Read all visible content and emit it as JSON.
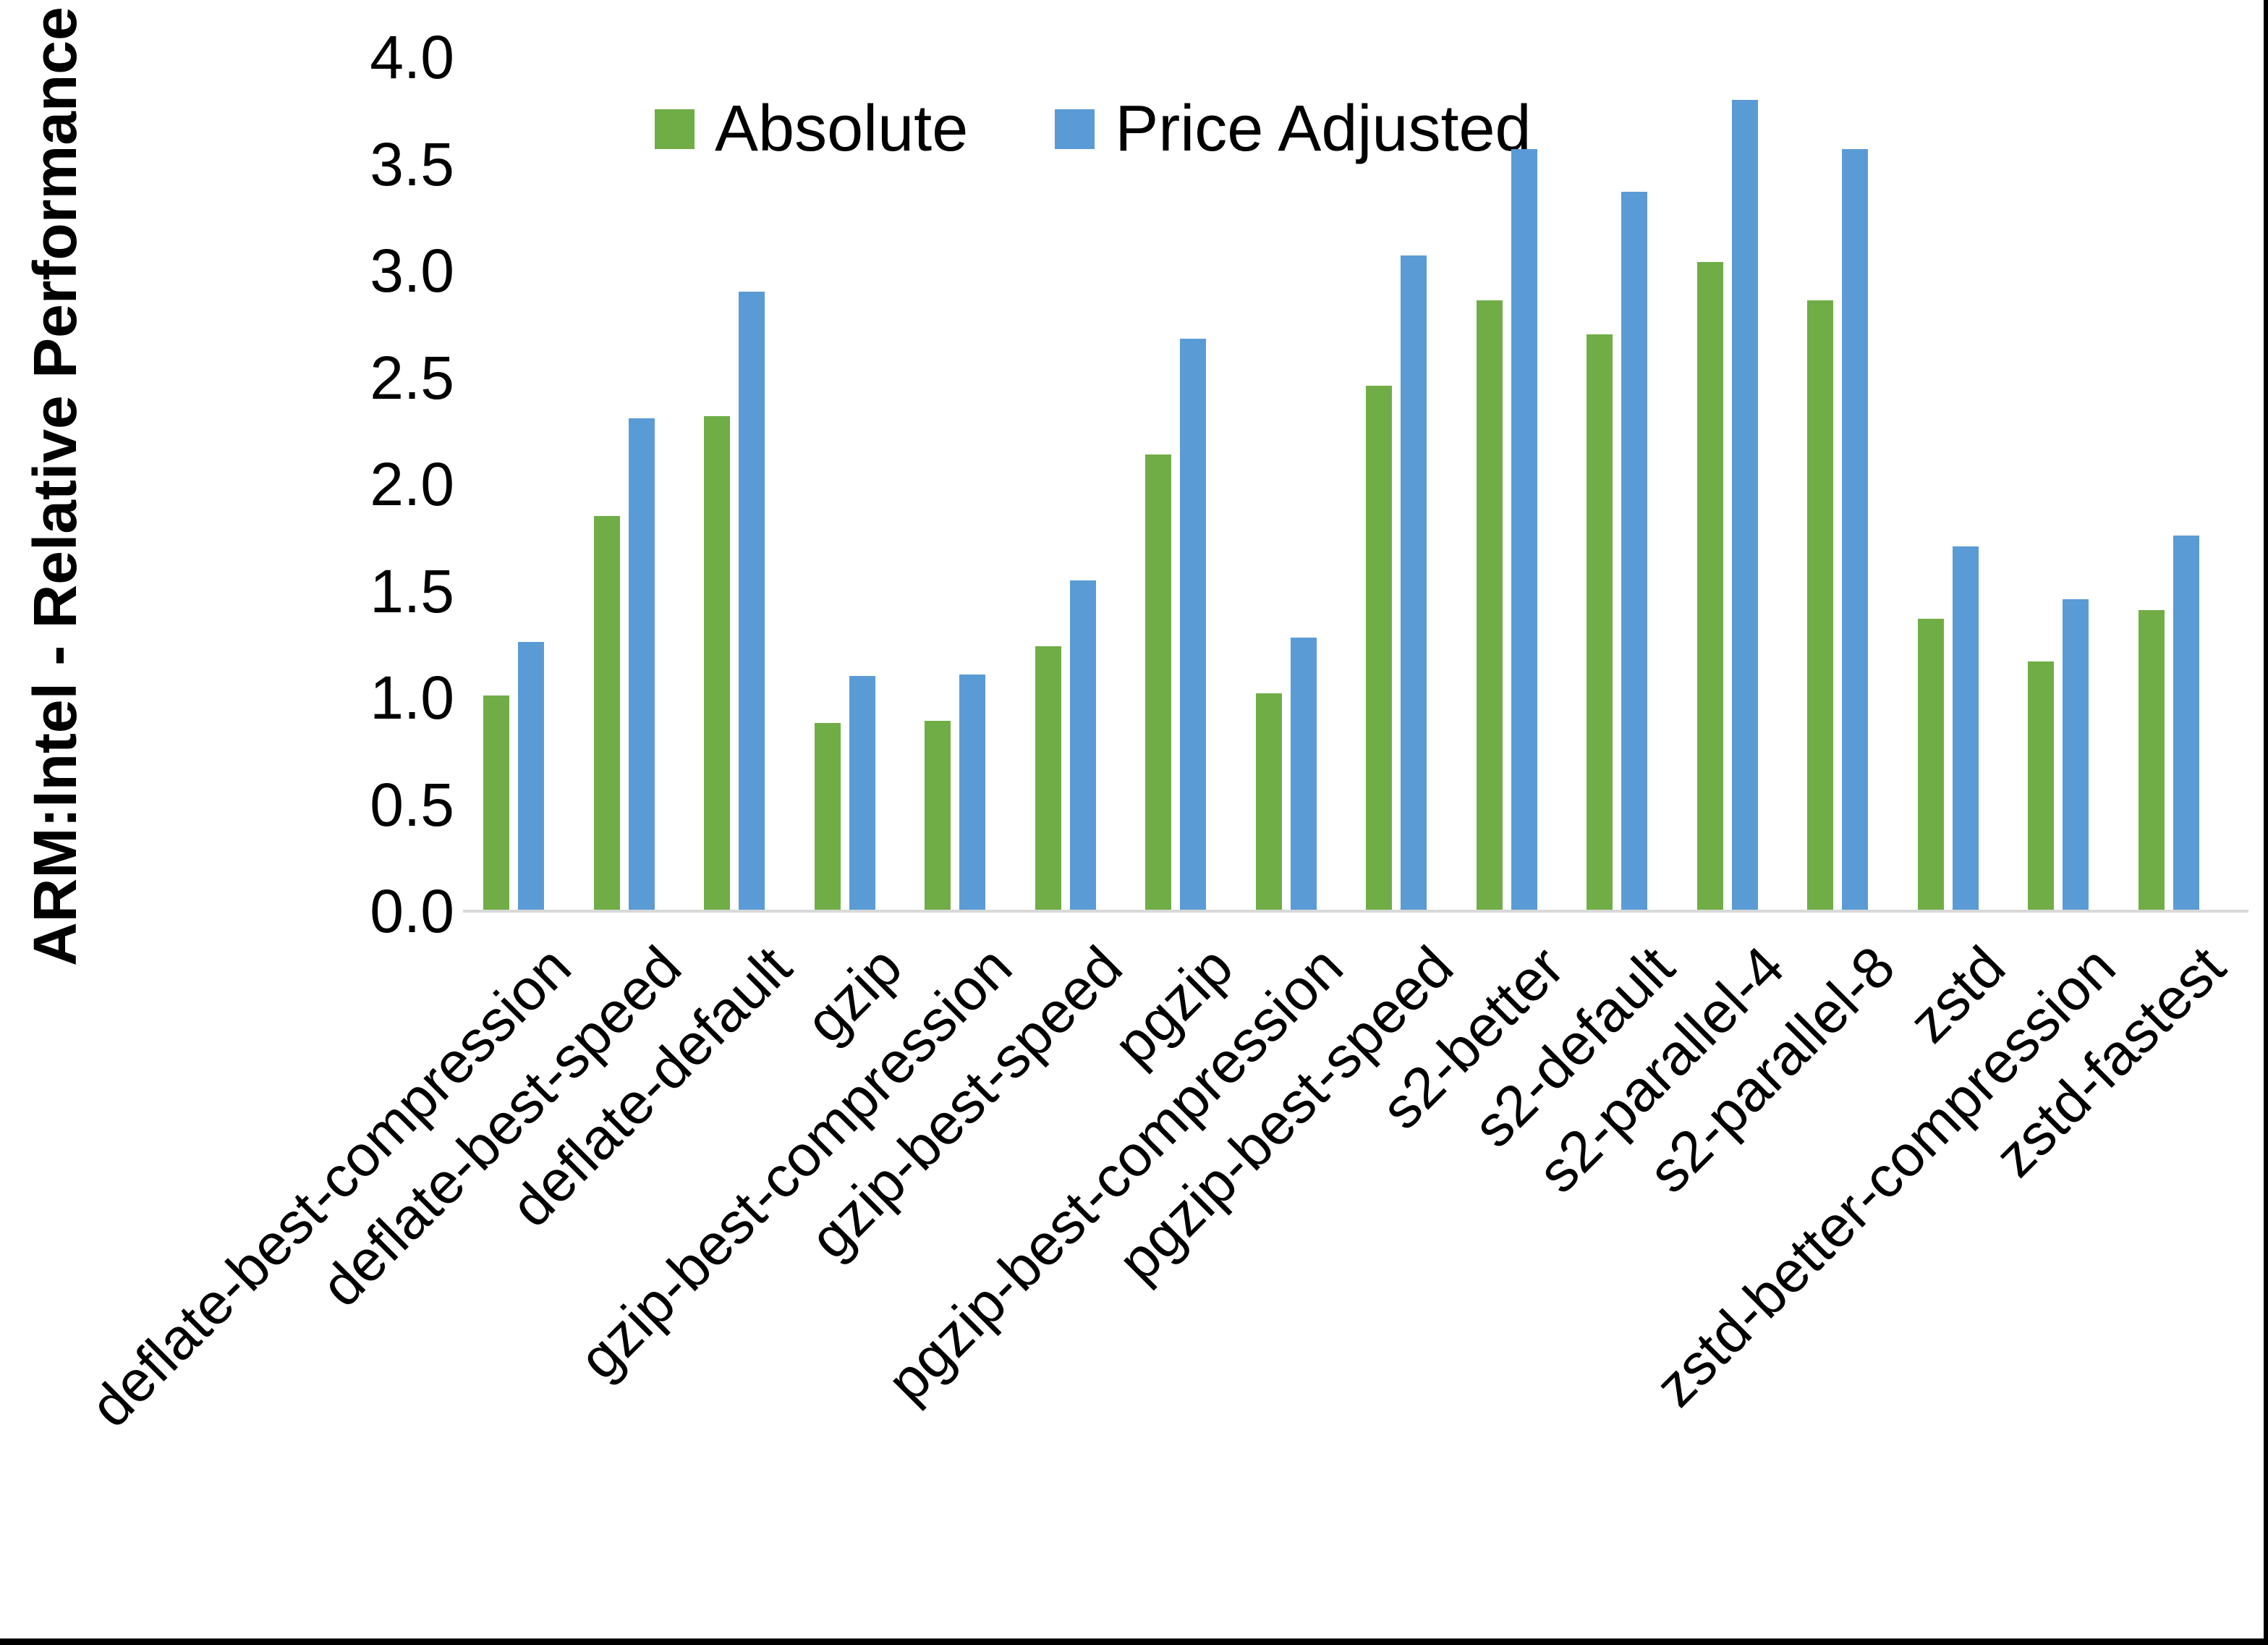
{
  "figure": {
    "background": "#ffffff",
    "frame_border_color": "#000000"
  },
  "chart_data": {
    "type": "bar",
    "title": "",
    "xlabel": "",
    "ylabel": "ARM:Intel - Relative Performance",
    "ylim": [
      0.0,
      4.0
    ],
    "y_ticks": [
      "0.0",
      "0.5",
      "1.0",
      "1.5",
      "2.0",
      "2.5",
      "3.0",
      "3.5",
      "4.0"
    ],
    "grid": false,
    "legend_position": "top-center",
    "axis_line_color": "#D9D9D9",
    "categories": [
      "deflate-best-compression",
      "deflate-best-speed",
      "deflate-default",
      "gzip",
      "gzip-best-compression",
      "gzip-best-speed",
      "pgzip",
      "pgzip-best-compression",
      "pgzip-best-speed",
      "s2-better",
      "s2-default",
      "s2-parallel-4",
      "s2-parallel-8",
      "zstd",
      "zstd-better-compression",
      "zstd-fastest"
    ],
    "series": [
      {
        "name": "Absolute",
        "color": "#70AD47",
        "values": [
          1.01,
          1.85,
          2.32,
          0.88,
          0.89,
          1.24,
          2.14,
          1.02,
          2.46,
          2.86,
          2.7,
          3.04,
          2.86,
          1.37,
          1.17,
          1.41
        ]
      },
      {
        "name": "Price Adjusted",
        "color": "#5B9BD5",
        "values": [
          1.26,
          2.31,
          2.9,
          1.1,
          1.11,
          1.55,
          2.68,
          1.28,
          3.07,
          3.57,
          3.37,
          3.8,
          3.57,
          1.71,
          1.46,
          1.76
        ]
      }
    ]
  }
}
